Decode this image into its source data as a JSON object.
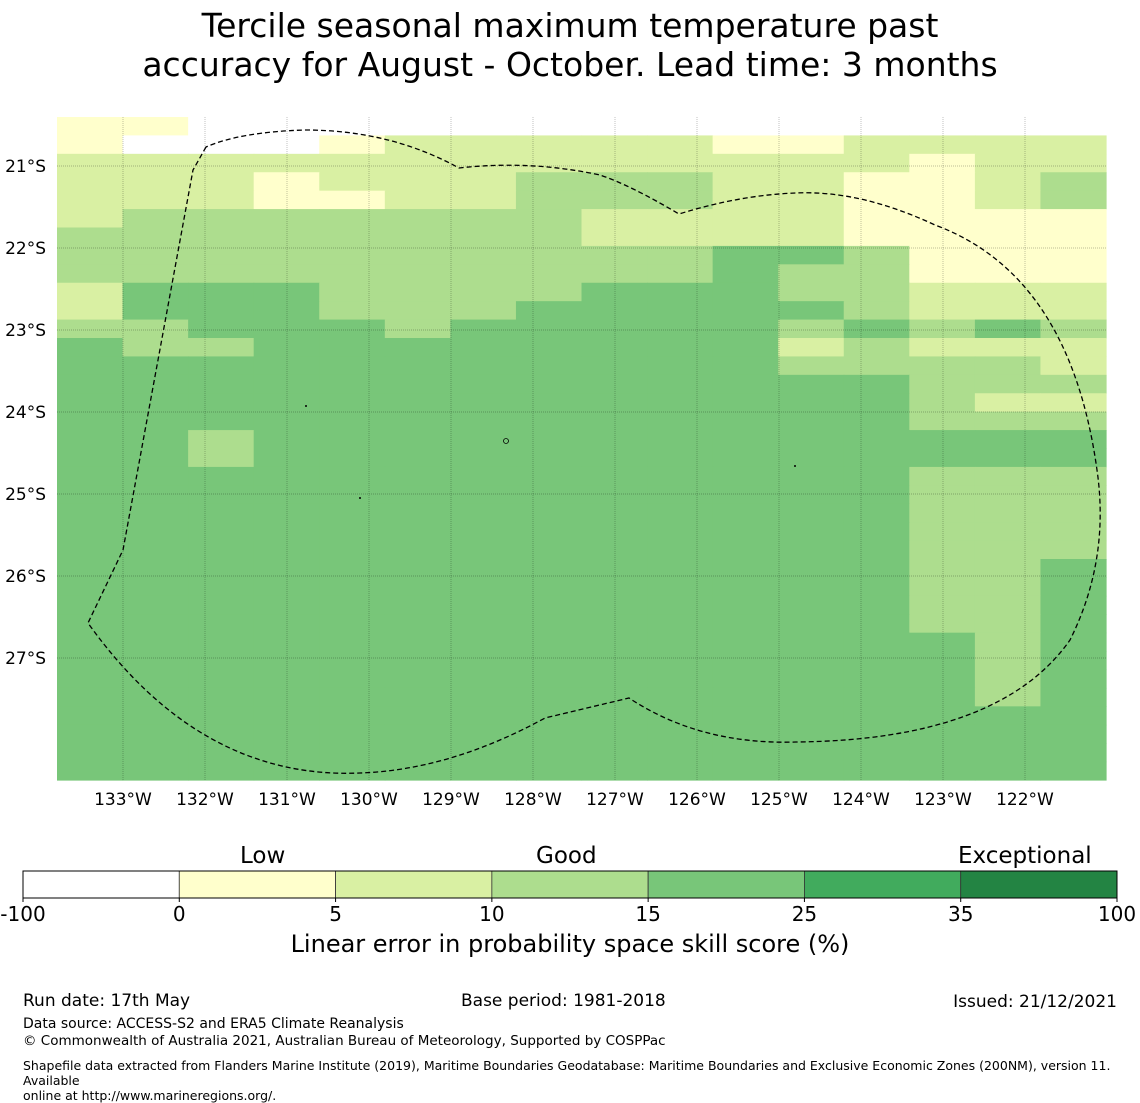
{
  "title_line1": "Tercile seasonal maximum temperature past",
  "title_line2": "accuracy for August - October. Lead time: 3 months",
  "map": {
    "lat_labels": [
      "21°S",
      "22°S",
      "23°S",
      "24°S",
      "25°S",
      "26°S",
      "27°S"
    ],
    "lon_labels": [
      "133°W",
      "132°W",
      "131°W",
      "130°W",
      "129°W",
      "128°W",
      "127°W",
      "126°W",
      "125°W",
      "124°W",
      "123°W",
      "122°W"
    ],
    "class_colors": [
      "#ffffff",
      "#ffffcc",
      "#d9f0a3",
      "#addd8e",
      "#78c679",
      "#41ab5d",
      "#238443"
    ],
    "grid": [
      "1100000000000000",
      "1000122222112222",
      "2222222222222122",
      "2221222333221123",
      "2221122333221123",
      "2333333322221111",
      "3333333322221111",
      "3333333333443111",
      "3333333333433111",
      "2444333344433222",
      "2444333444443222",
      "3344434444434343",
      "4334444444423222",
      "4444444444433332",
      "4444444444444333",
      "4444444444444322",
      "4444444444444333",
      "4434444444444444",
      "4434444444444444",
      "4444444444444333",
      "4444444444444333",
      "4444444444444333",
      "4444444444444333",
      "4444444444444333",
      "4444444444444334",
      "4444444444444334",
      "4444444444444334",
      "4444444444444334",
      "4444444444444434",
      "4444444444444434",
      "4444444444444434",
      "4444444444444434",
      "4444444444444444",
      "4444444444444444",
      "4444444444444444",
      "4444444444444444"
    ]
  },
  "colorbar": {
    "words": [
      "Low",
      "Good",
      "Exceptional"
    ],
    "ticks": [
      "-100",
      "0",
      "5",
      "10",
      "15",
      "25",
      "35",
      "100"
    ],
    "colors": [
      "#ffffff",
      "#ffffcc",
      "#d9f0a3",
      "#addd8e",
      "#78c679",
      "#41ab5d",
      "#238443"
    ],
    "axis_label": "Linear error in probability space skill score (%)"
  },
  "footer": {
    "run_date": "Run date: 17th May",
    "base_period": "Base period: 1981-2018",
    "issued": "Issued: 21/12/2021",
    "data_source": "Data source: ACCESS-S2 and ERA5 Climate Reanalysis",
    "copyright": "© Commonwealth of Australia 2021, Australian Bureau of Meteorology, Supported by COSPPac",
    "shapefile_line1": "Shapefile data extracted from Flanders Marine Institute (2019), Maritime Boundaries Geodatabase: Maritime Boundaries and Exclusive Economic Zones (200NM), version 11. Available",
    "shapefile_line2": "online at http://www.marineregions.org/."
  }
}
